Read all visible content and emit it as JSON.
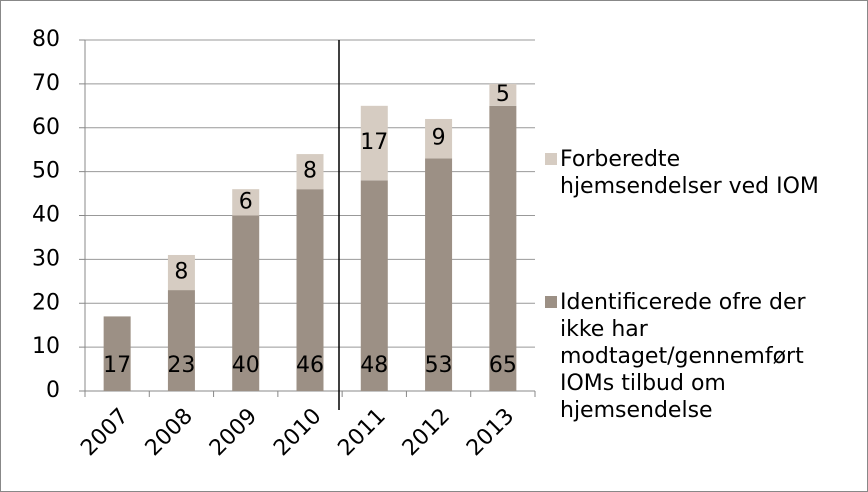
{
  "chart_data": {
    "type": "stacked_bar",
    "categories": [
      "2007",
      "2008",
      "2009",
      "2010",
      "2011",
      "2012",
      "2013"
    ],
    "series": [
      {
        "name": "Identificerede ofre der ikke har modtaget/gennemført IOMs tilbud om hjemsendelse",
        "color": "#9c9085",
        "values": [
          17,
          23,
          40,
          46,
          48,
          53,
          65
        ]
      },
      {
        "name": "Forberedte hjemsendelser ved IOM",
        "color": "#d6ccc2",
        "values": [
          null,
          8,
          6,
          8,
          17,
          9,
          5
        ]
      }
    ],
    "ylim": [
      0,
      80
    ],
    "yticks": [
      0,
      10,
      20,
      30,
      40,
      50,
      60,
      70,
      80
    ],
    "grid": true,
    "legend": "right"
  }
}
